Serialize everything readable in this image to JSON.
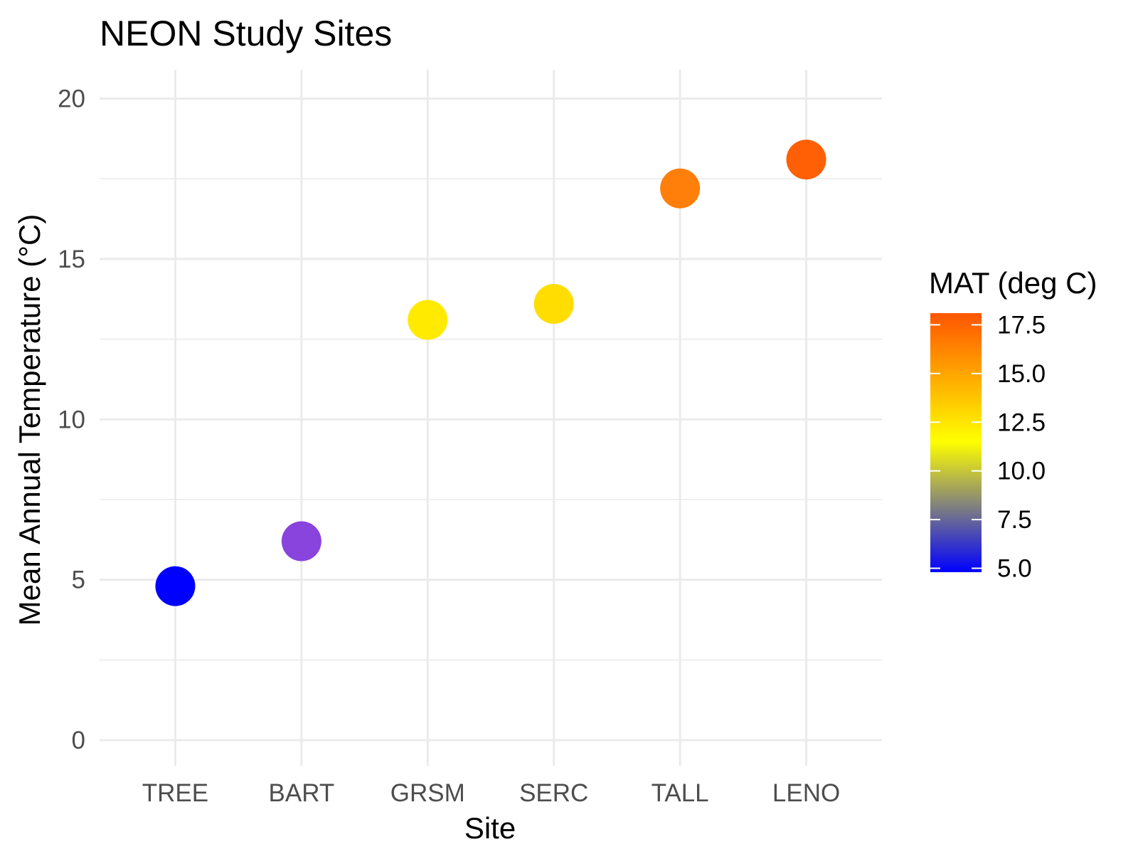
{
  "chart_data": {
    "type": "scatter",
    "title": "NEON Study Sites",
    "xlabel": "Site",
    "ylabel": "Mean Annual Temperature (°C)",
    "categories": [
      "TREE",
      "BART",
      "GRSM",
      "SERC",
      "TALL",
      "LENO"
    ],
    "values": [
      4.8,
      6.2,
      13.1,
      13.6,
      17.2,
      18.1
    ],
    "ylim": [
      -0.8,
      20.9
    ],
    "yticks": [
      0,
      5,
      10,
      15,
      20
    ],
    "grid": true,
    "legend": {
      "title": "MAT (deg C)",
      "placement": "right",
      "type": "colorbar",
      "range": [
        4.8,
        18.1
      ],
      "ticks": [
        "5.0",
        "7.5",
        "10.0",
        "12.5",
        "15.0",
        "17.5"
      ],
      "tick_values": [
        5.0,
        7.5,
        10.0,
        12.5,
        15.0,
        17.5
      ],
      "gradient": [
        {
          "value": 4.8,
          "color": "#0000ff"
        },
        {
          "value": 11.5,
          "color": "#ffff00"
        },
        {
          "value": 18.1,
          "color": "#ff5500"
        }
      ]
    },
    "point_colors": [
      "#0000ff",
      "#8844dd",
      "#ffea00",
      "#ffdd00",
      "#ff7f0a",
      "#ff5f05"
    ]
  }
}
